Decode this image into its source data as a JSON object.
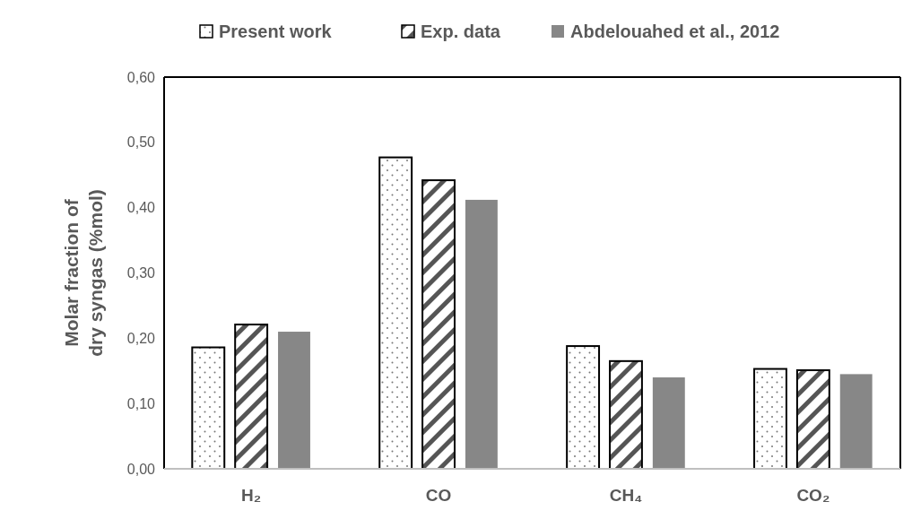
{
  "chart_data": {
    "type": "bar",
    "ylabel": "Molar fraction of dry syngas (%mol)",
    "categories": [
      "H₂",
      "CO",
      "CH₄",
      "CO₂"
    ],
    "series": [
      {
        "name": "Present work",
        "color": "#000000",
        "values": [
          0.186,
          0.477,
          0.188,
          0.153
        ]
      },
      {
        "name": "Exp. data",
        "color": "#000000",
        "values": [
          0.221,
          0.442,
          0.165,
          0.151
        ]
      },
      {
        "name": "Abdelouahed et al., 2012",
        "color": "#878787",
        "values": [
          0.21,
          0.412,
          0.14,
          0.145
        ]
      }
    ],
    "ylim": [
      0,
      0.6
    ],
    "yticks": [
      {
        "value": 0,
        "label": "0,00"
      },
      {
        "value": 0.1,
        "label": "0,10"
      },
      {
        "value": 0.2,
        "label": "0,20"
      },
      {
        "value": 0.3,
        "label": "0,30"
      },
      {
        "value": 0.4,
        "label": "0,40"
      },
      {
        "value": 0.5,
        "label": "0,50"
      },
      {
        "value": 0.6,
        "label": "0,60"
      }
    ],
    "grid": false,
    "legend": "top"
  }
}
